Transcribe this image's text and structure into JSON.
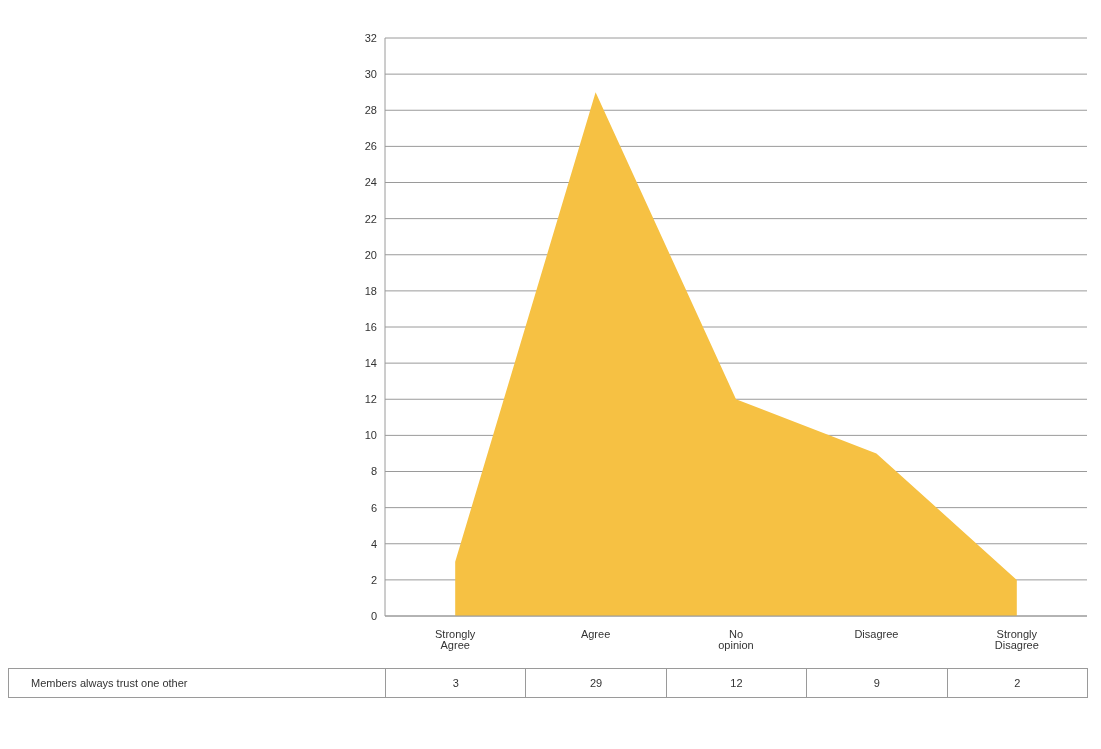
{
  "chart_data": {
    "type": "area",
    "categories": [
      "Strongly Agree",
      "Agree",
      "No opinion",
      "Disagree",
      "Strongly Disagree"
    ],
    "series": [
      {
        "name": "Members always trust one other",
        "color": "#f6c143",
        "values": [
          3,
          29,
          12,
          9,
          2
        ]
      }
    ],
    "ylim": [
      0,
      32
    ],
    "yticks": [
      0,
      2,
      4,
      6,
      8,
      10,
      12,
      14,
      16,
      18,
      20,
      22,
      24,
      26,
      28,
      30,
      32
    ],
    "grid": "y",
    "data_labels": true
  }
}
